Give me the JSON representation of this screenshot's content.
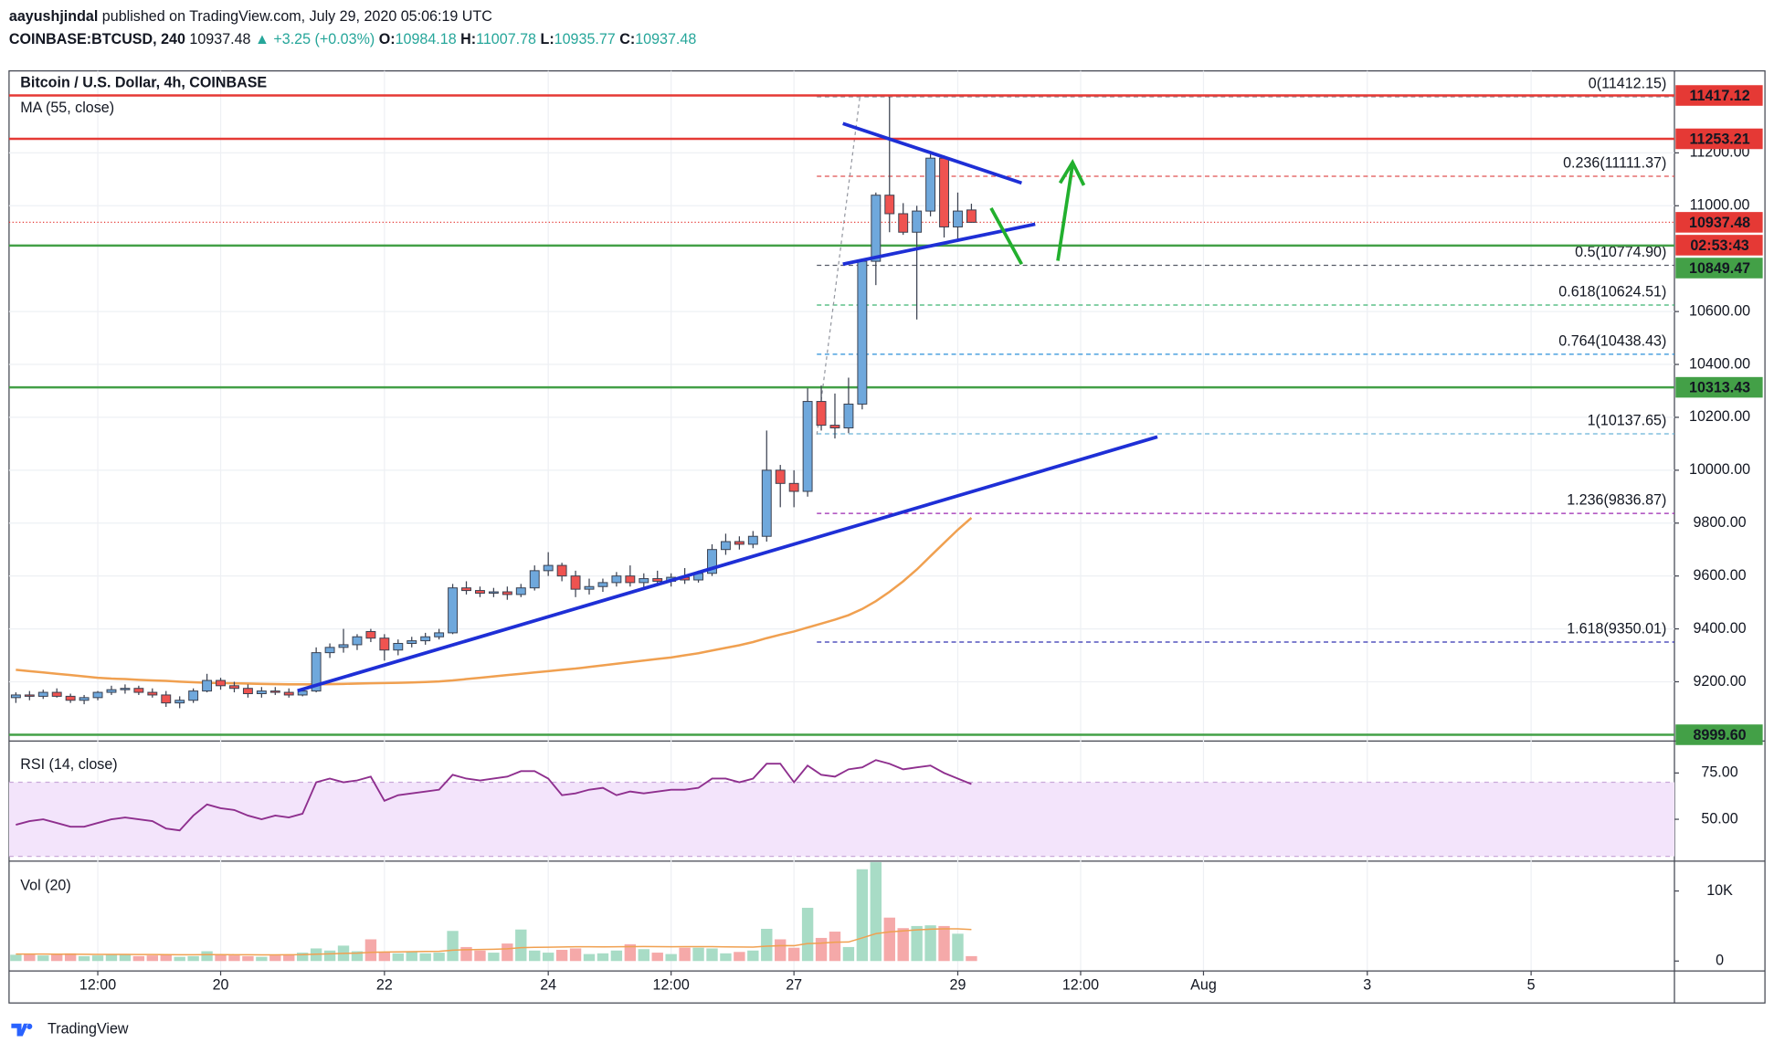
{
  "header": {
    "author": "aayushjindal",
    "published": "published on TradingView.com, July 29, 2020 05:06:19 UTC",
    "symbol": "COINBASE:BTCUSD, 240",
    "last": "10937.48",
    "change": "▲ +3.25 (+0.03%)",
    "ohlc": [
      {
        "key": "O:",
        "value": "10984.18"
      },
      {
        "key": "H:",
        "value": "11007.78"
      },
      {
        "key": "L:",
        "value": "10935.77"
      },
      {
        "key": "C:",
        "value": "10937.48"
      }
    ]
  },
  "footer": {
    "brand": "TradingView"
  },
  "chart_data": [
    {
      "type": "candlestick",
      "title": "Bitcoin / U.S. Dollar, 4h, COINBASE",
      "up_color": "#6fa8dc",
      "down_color": "#ef5350",
      "xlim": [
        -0.5,
        121.5
      ],
      "xticks": [
        {
          "value": 6,
          "label": "12:00"
        },
        {
          "value": 15,
          "label": "20"
        },
        {
          "value": 27,
          "label": "22"
        },
        {
          "value": 39,
          "label": "24"
        },
        {
          "value": 48,
          "label": "12:00"
        },
        {
          "value": 57,
          "label": "27"
        },
        {
          "value": 69,
          "label": "29"
        },
        {
          "value": 78,
          "label": "12:00"
        },
        {
          "value": 87,
          "label": "Aug"
        },
        {
          "value": 99,
          "label": "3"
        },
        {
          "value": 111,
          "label": "5"
        }
      ],
      "ylim": [
        8980,
        11510
      ],
      "yticks": [
        {
          "value": 11200,
          "label": "11200.00"
        },
        {
          "value": 11000,
          "label": "11000.00"
        },
        {
          "value": 10600,
          "label": "10600.00"
        },
        {
          "value": 10400,
          "label": "10400.00"
        },
        {
          "value": 10200,
          "label": "10200.00"
        },
        {
          "value": 10000,
          "label": "10000.00"
        },
        {
          "value": 9800,
          "label": "9800.00"
        },
        {
          "value": 9600,
          "label": "9600.00"
        },
        {
          "value": 9400,
          "label": "9400.00"
        },
        {
          "value": 9200,
          "label": "9200.00"
        }
      ],
      "grid": true,
      "ohlc": [
        [
          9140,
          9160,
          9120,
          9150
        ],
        [
          9150,
          9165,
          9130,
          9145
        ],
        [
          9145,
          9170,
          9135,
          9160
        ],
        [
          9160,
          9175,
          9140,
          9145
        ],
        [
          9145,
          9155,
          9120,
          9130
        ],
        [
          9130,
          9150,
          9115,
          9140
        ],
        [
          9140,
          9165,
          9130,
          9160
        ],
        [
          9160,
          9185,
          9150,
          9170
        ],
        [
          9170,
          9190,
          9155,
          9175
        ],
        [
          9175,
          9185,
          9150,
          9160
        ],
        [
          9160,
          9175,
          9140,
          9150
        ],
        [
          9150,
          9165,
          9105,
          9120
        ],
        [
          9120,
          9145,
          9100,
          9130
        ],
        [
          9130,
          9175,
          9120,
          9165
        ],
        [
          9165,
          9230,
          9160,
          9205
        ],
        [
          9205,
          9215,
          9170,
          9185
        ],
        [
          9185,
          9200,
          9160,
          9175
        ],
        [
          9175,
          9190,
          9140,
          9155
        ],
        [
          9155,
          9180,
          9140,
          9165
        ],
        [
          9165,
          9180,
          9150,
          9160
        ],
        [
          9160,
          9175,
          9140,
          9150
        ],
        [
          9150,
          9170,
          9145,
          9165
        ],
        [
          9165,
          9330,
          9160,
          9310
        ],
        [
          9310,
          9345,
          9290,
          9330
        ],
        [
          9330,
          9400,
          9310,
          9340
        ],
        [
          9340,
          9380,
          9320,
          9370
        ],
        [
          9390,
          9400,
          9350,
          9365
        ],
        [
          9365,
          9380,
          9280,
          9320
        ],
        [
          9320,
          9360,
          9300,
          9345
        ],
        [
          9345,
          9370,
          9330,
          9355
        ],
        [
          9355,
          9385,
          9340,
          9370
        ],
        [
          9370,
          9400,
          9360,
          9385
        ],
        [
          9385,
          9570,
          9380,
          9555
        ],
        [
          9555,
          9580,
          9530,
          9545
        ],
        [
          9545,
          9560,
          9520,
          9535
        ],
        [
          9535,
          9555,
          9520,
          9540
        ],
        [
          9540,
          9560,
          9510,
          9530
        ],
        [
          9530,
          9570,
          9520,
          9555
        ],
        [
          9555,
          9640,
          9545,
          9620
        ],
        [
          9620,
          9690,
          9600,
          9640
        ],
        [
          9640,
          9650,
          9580,
          9600
        ],
        [
          9600,
          9620,
          9520,
          9550
        ],
        [
          9550,
          9590,
          9530,
          9560
        ],
        [
          9560,
          9590,
          9540,
          9575
        ],
        [
          9575,
          9615,
          9560,
          9600
        ],
        [
          9600,
          9640,
          9560,
          9575
        ],
        [
          9575,
          9610,
          9550,
          9590
        ],
        [
          9590,
          9620,
          9565,
          9580
        ],
        [
          9580,
          9610,
          9560,
          9595
        ],
        [
          9595,
          9630,
          9570,
          9585
        ],
        [
          9585,
          9620,
          9575,
          9610
        ],
        [
          9610,
          9720,
          9600,
          9700
        ],
        [
          9700,
          9760,
          9680,
          9730
        ],
        [
          9730,
          9750,
          9700,
          9720
        ],
        [
          9720,
          9770,
          9705,
          9750
        ],
        [
          9750,
          10150,
          9730,
          10000
        ],
        [
          10000,
          10020,
          9860,
          9950
        ],
        [
          9950,
          10000,
          9860,
          9920
        ],
        [
          9920,
          10310,
          9900,
          10260
        ],
        [
          10260,
          10320,
          10150,
          10170
        ],
        [
          10170,
          10290,
          10120,
          10160
        ],
        [
          10160,
          10350,
          10140,
          10250
        ],
        [
          10250,
          10800,
          10230,
          10790
        ],
        [
          10790,
          11050,
          10700,
          11040
        ],
        [
          11040,
          11412,
          10900,
          10970
        ],
        [
          10970,
          11010,
          10890,
          10900
        ],
        [
          10900,
          11000,
          10570,
          10980
        ],
        [
          10980,
          11200,
          10960,
          11180
        ],
        [
          11180,
          11190,
          10880,
          10920
        ],
        [
          10920,
          11050,
          10870,
          10980
        ],
        [
          10984.18,
          11007.78,
          10935.77,
          10937.48
        ]
      ],
      "ma": {
        "label": "MA (55, close)",
        "color": "#f0a050",
        "values": [
          9245,
          9240,
          9235,
          9230,
          9225,
          9220,
          9215,
          9212,
          9210,
          9207,
          9205,
          9203,
          9200,
          9198,
          9196,
          9195,
          9194,
          9193,
          9192,
          9191,
          9190,
          9190,
          9190,
          9191,
          9192,
          9193,
          9194,
          9195,
          9196,
          9197,
          9199,
          9201,
          9205,
          9210,
          9215,
          9220,
          9225,
          9230,
          9235,
          9240,
          9245,
          9250,
          9256,
          9262,
          9268,
          9274,
          9280,
          9286,
          9292,
          9300,
          9308,
          9318,
          9328,
          9338,
          9350,
          9365,
          9378,
          9390,
          9405,
          9420,
          9435,
          9452,
          9475,
          9505,
          9540,
          9580,
          9625,
          9675,
          9725,
          9775,
          9820
        ]
      },
      "levels": [
        {
          "value": 11417.12,
          "label": "11417.12",
          "color": "#e53935"
        },
        {
          "value": 11253.21,
          "label": "11253.21",
          "color": "#e53935"
        },
        {
          "value": 10849.47,
          "label": "10849.47",
          "color": "#43a047"
        },
        {
          "value": 10313.43,
          "label": "10313.43",
          "color": "#43a047"
        },
        {
          "value": 8999.6,
          "label": "8999.60",
          "color": "#43a047"
        }
      ],
      "last": {
        "value": 10937.48,
        "label": "10937.48",
        "countdown": "02:53:43",
        "color": "#e53935"
      },
      "fib": [
        {
          "value": 11412.15,
          "label": "0(11412.15)",
          "color": "#8a8d96"
        },
        {
          "value": 11111.37,
          "label": "0.236(11111.37)",
          "color": "#e05050"
        },
        {
          "value": 10774.9,
          "label": "0.5(10774.90)",
          "color": "#555a66"
        },
        {
          "value": 10624.51,
          "label": "0.618(10624.51)",
          "color": "#3cb371"
        },
        {
          "value": 10438.43,
          "label": "0.764(10438.43)",
          "color": "#2a8fd8"
        },
        {
          "value": 10137.65,
          "label": "1(10137.65)",
          "color": "#69b2d6"
        },
        {
          "value": 9836.87,
          "label": "1.236(9836.87)",
          "color": "#9c27b0"
        },
        {
          "value": 9350.01,
          "label": "1.618(9350.01)",
          "color": "#3030b0"
        }
      ]
    },
    {
      "type": "line",
      "title": "RSI (14, close)",
      "color": "#8e2f8e",
      "band": [
        30,
        70
      ],
      "band_color": "#f3e4fb",
      "ylim": [
        28,
        91
      ],
      "yticks": [
        {
          "value": 75,
          "label": "75.00"
        },
        {
          "value": 50,
          "label": "50.00"
        }
      ],
      "values": [
        47,
        49,
        50,
        48,
        46,
        46,
        48,
        50,
        51,
        50,
        49,
        45,
        44,
        52,
        58,
        56,
        55,
        52,
        50,
        52,
        51,
        53,
        70,
        72,
        70,
        71,
        73,
        60,
        63,
        64,
        65,
        66,
        74,
        72,
        71,
        72,
        73,
        76,
        76,
        72,
        63,
        64,
        66,
        67,
        63,
        65,
        64,
        65,
        66,
        66,
        67,
        72,
        72,
        70,
        72,
        80,
        80,
        70,
        79,
        74,
        73,
        77,
        78,
        82,
        80,
        77,
        78,
        79,
        75,
        72,
        69
      ]
    },
    {
      "type": "bar",
      "title": "Vol (20)",
      "up_color": "#a8dcc6",
      "down_color": "#f5a9a9",
      "ylim": [
        -1250,
        13930
      ],
      "yticks": [
        {
          "value": 10000,
          "label": "10K"
        },
        0
      ],
      "values": [
        900,
        1000,
        800,
        900,
        1100,
        700,
        800,
        900,
        1000,
        700,
        800,
        900,
        600,
        700,
        1400,
        900,
        800,
        700,
        600,
        800,
        900,
        1200,
        1800,
        1500,
        2200,
        1400,
        3100,
        1300,
        1100,
        1300,
        1100,
        1200,
        4300,
        2000,
        1500,
        1200,
        2500,
        4500,
        1500,
        1200,
        1600,
        1800,
        1000,
        1100,
        1500,
        2400,
        1700,
        1200,
        1000,
        1900,
        1900,
        1800,
        1100,
        1300,
        1500,
        4600,
        3100,
        1900,
        7600,
        3300,
        4200,
        2000,
        13100,
        14100,
        6200,
        4700,
        5000,
        5100,
        5000,
        3900,
        700
      ],
      "ma": {
        "color": "#f0a050",
        "values": [
          1000,
          1000,
          1000,
          990,
          980,
          970,
          960,
          950,
          950,
          940,
          930,
          920,
          910,
          900,
          920,
          920,
          910,
          900,
          890,
          890,
          900,
          920,
          980,
          1030,
          1100,
          1140,
          1250,
          1290,
          1320,
          1350,
          1380,
          1400,
          1550,
          1620,
          1660,
          1680,
          1760,
          1920,
          1960,
          1990,
          2020,
          2050,
          2040,
          2030,
          2040,
          2070,
          2080,
          2070,
          2050,
          2060,
          2070,
          2060,
          2030,
          2010,
          2000,
          2130,
          2190,
          2190,
          2480,
          2560,
          2690,
          2720,
          3300,
          3900,
          4150,
          4300,
          4450,
          4550,
          4600,
          4600,
          4500
        ]
      }
    }
  ]
}
